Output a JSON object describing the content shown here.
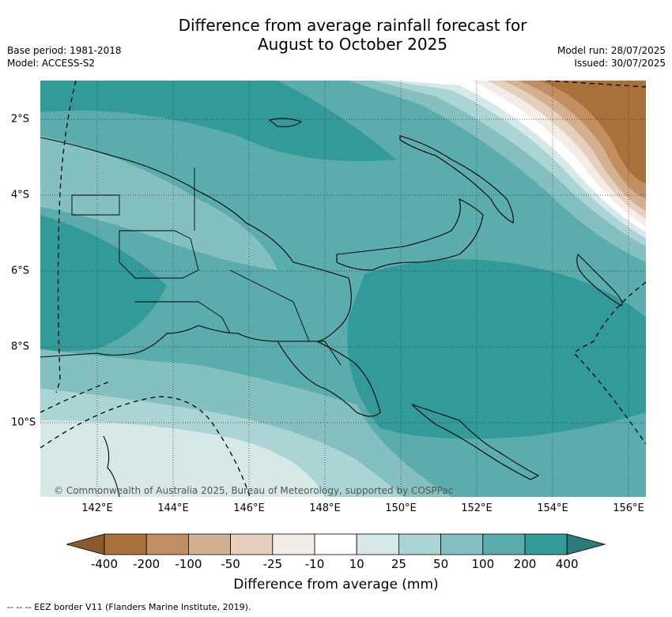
{
  "title": "Difference from average rainfall forecast for",
  "title_line2": "August to October 2025",
  "meta_left": [
    "Base period: 1981-2018",
    "Model: ACCESS-S2"
  ],
  "meta_right": [
    "Model run: 28/07/2025",
    "Issued: 30/07/2025"
  ],
  "x_ticks": [
    "142°E",
    "144°E",
    "146°E",
    "148°E",
    "150°E",
    "152°E",
    "154°E",
    "156°E"
  ],
  "y_ticks": [
    "2°S",
    "4°S",
    "6°S",
    "8°S",
    "10°S"
  ],
  "copyright": "© Commonwealth of Australia 2025, Bureau of Meteorology, supported by COSPPac",
  "colorbar": {
    "boundaries": [
      "-400",
      "-200",
      "-100",
      "-50",
      "-25",
      "-10",
      "10",
      "25",
      "50",
      "100",
      "200",
      "400"
    ],
    "colors": [
      "#a8703a",
      "#c28f63",
      "#d4b093",
      "#e6d0bd",
      "#f2ede7",
      "#ffffff",
      "#d6e9e8",
      "#abd5d4",
      "#83c0bf",
      "#5aadac",
      "#329a99"
    ],
    "under_color": "#8a5a2e",
    "over_color": "#2a7b7a",
    "title": "Difference from average (mm)"
  },
  "footnote": "-- -- -- EEZ border V11 (Flanders Marine Institute, 2019)."
}
